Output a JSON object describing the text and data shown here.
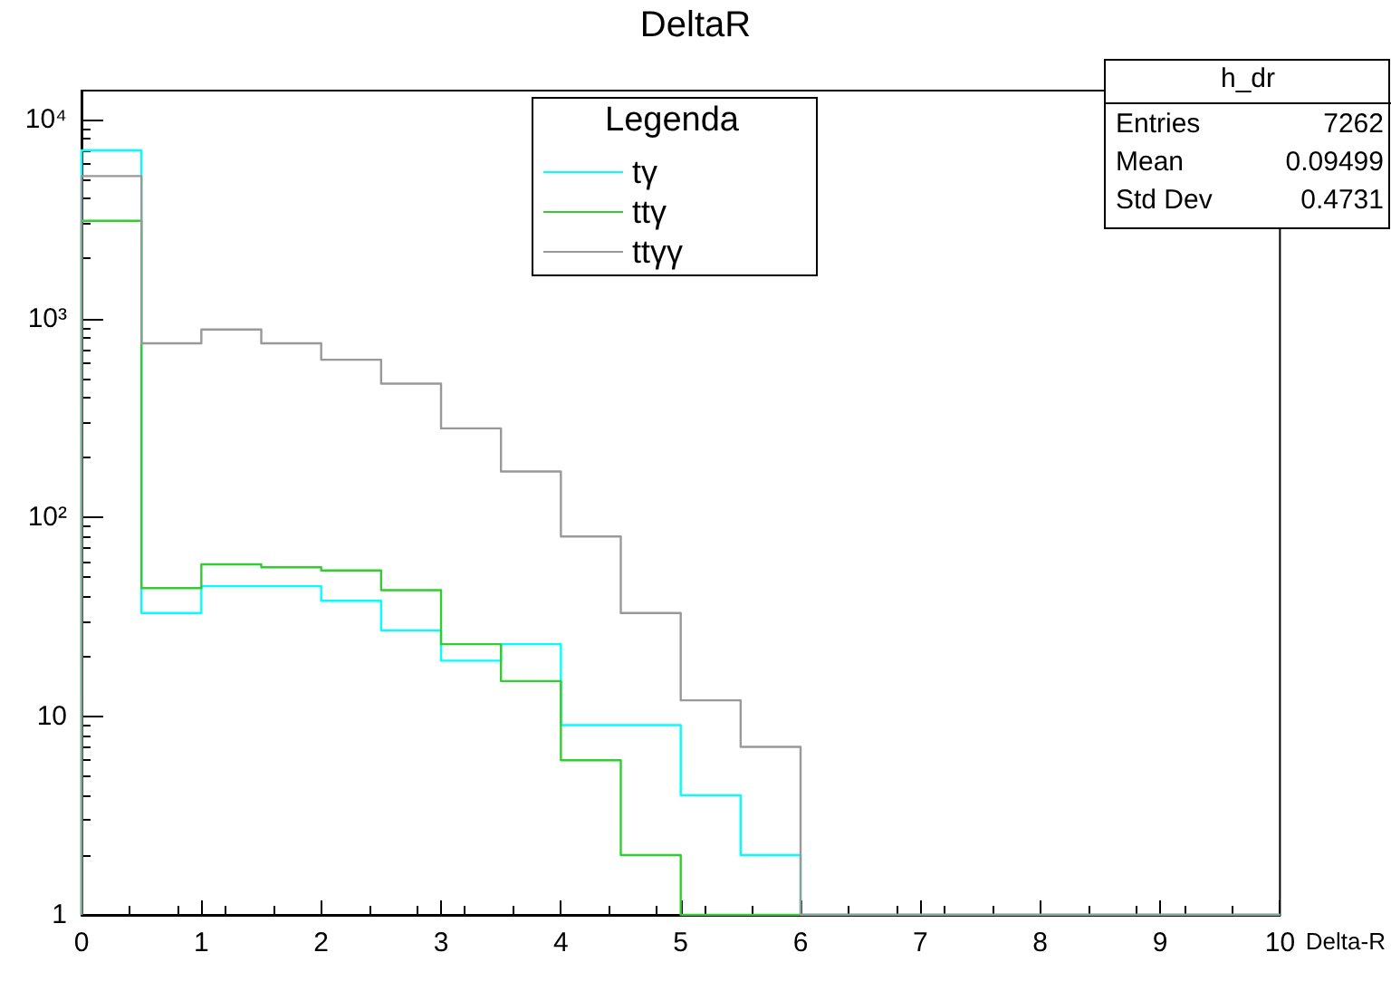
{
  "chart_data": {
    "type": "histogram",
    "title": "DeltaR",
    "xlabel": "Delta-R",
    "legend_title": "Legenda",
    "bins": [
      0,
      0.5,
      1,
      1.5,
      2,
      2.5,
      3,
      3.5,
      4,
      4.5,
      5,
      5.5,
      6,
      6.5,
      7,
      7.5,
      8,
      8.5,
      9,
      9.5,
      10
    ],
    "series": [
      {
        "name": "tγ",
        "color": "#00ffff",
        "values": [
          7000,
          33,
          45,
          45,
          38,
          27,
          19,
          23,
          9,
          9,
          4,
          2,
          null,
          null,
          null,
          null,
          null,
          null,
          null,
          null
        ]
      },
      {
        "name": "ttγ",
        "color": "#33cc33",
        "values": [
          3100,
          44,
          58,
          56,
          54,
          43,
          23,
          15,
          6,
          2,
          null,
          null,
          null,
          null,
          null,
          null,
          null,
          null,
          null,
          null
        ]
      },
      {
        "name": "ttγγ",
        "color": "#999999",
        "values": [
          5200,
          750,
          880,
          750,
          620,
          470,
          280,
          170,
          80,
          33,
          12,
          7,
          null,
          null,
          null,
          null,
          null,
          null,
          null,
          null
        ]
      }
    ],
    "log": "y",
    "xlim": [
      0,
      10
    ],
    "ylim": [
      1,
      14000
    ],
    "xticks": [
      0,
      1,
      2,
      3,
      4,
      5,
      6,
      7,
      8,
      9,
      10
    ],
    "yticks": [
      1,
      10,
      {
        "value": 100,
        "label": "10²"
      },
      {
        "value": 1000,
        "label": "10³"
      },
      {
        "value": 10000,
        "label": "10⁴"
      }
    ],
    "grid": false,
    "legend": "top",
    "annotations": [
      "h_dr",
      "Entries",
      "7262",
      "Mean",
      "0.09499",
      "Std Dev",
      "0.4731"
    ]
  }
}
